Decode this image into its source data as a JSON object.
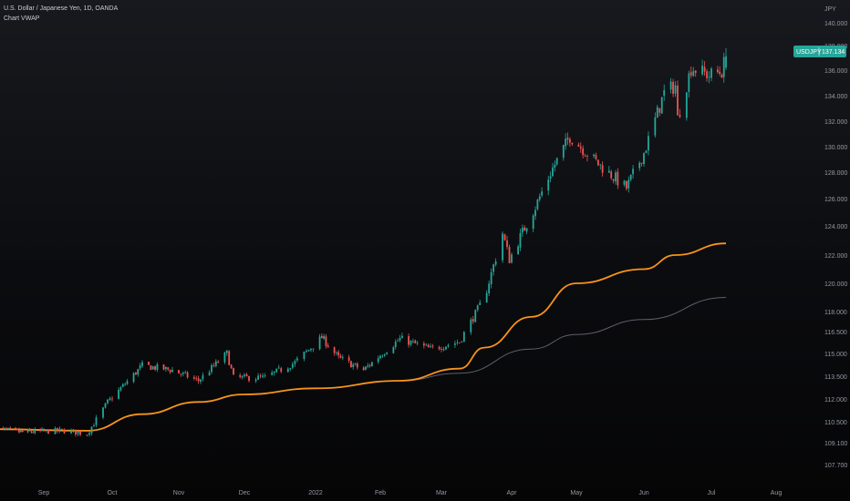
{
  "header": {
    "symbol_line": "U.S. Dollar / Japanese Yen, 1D, OANDA",
    "indicator_line": "Chart VWAP"
  },
  "colors": {
    "up": "#26a69a",
    "down": "#ef5350",
    "vwap": "#f7931a",
    "secondary_line": "#5d606b",
    "badge": "#26a69a",
    "background": "#0b0c0f"
  },
  "chart_data": {
    "type": "candlestick",
    "symbol": "USDJPY",
    "currency_label": "JPY",
    "last_price": "137.134",
    "x_ticks": [
      "Sep",
      "Oct",
      "Nov",
      "Dec",
      "2022",
      "Feb",
      "Mar",
      "Apr",
      "May",
      "Jun",
      "Jul",
      "Aug"
    ],
    "y_ticks": [
      "140.000",
      "138.000",
      "136.000",
      "134.000",
      "132.000",
      "130.000",
      "128.000",
      "126.000",
      "124.000",
      "122.000",
      "120.000",
      "118.000",
      "116.500",
      "115.000",
      "113.500",
      "112.000",
      "110.500",
      "109.100",
      "107.700"
    ],
    "y_tick_values": [
      140.0,
      138.0,
      136.0,
      134.0,
      132.0,
      130.0,
      128.0,
      126.0,
      124.0,
      122.0,
      120.0,
      118.0,
      116.5,
      115.0,
      113.5,
      112.0,
      110.5,
      109.1,
      107.7
    ],
    "close_path": [
      [
        "2021-08-05",
        110.0
      ],
      [
        "2021-08-20",
        109.8
      ],
      [
        "2021-09-10",
        109.9
      ],
      [
        "2021-09-20",
        109.7
      ],
      [
        "2021-09-29",
        111.8
      ],
      [
        "2021-10-15",
        114.2
      ],
      [
        "2021-10-29",
        113.9
      ],
      [
        "2021-11-10",
        113.2
      ],
      [
        "2021-11-23",
        115.0
      ],
      [
        "2021-11-26",
        113.4
      ],
      [
        "2021-12-10",
        113.4
      ],
      [
        "2021-12-23",
        114.4
      ],
      [
        "2022-01-04",
        116.1
      ],
      [
        "2022-01-12",
        114.7
      ],
      [
        "2022-01-24",
        113.9
      ],
      [
        "2022-02-10",
        116.0
      ],
      [
        "2022-02-24",
        115.3
      ],
      [
        "2022-03-09",
        115.8
      ],
      [
        "2022-03-20",
        119.0
      ],
      [
        "2022-03-28",
        123.5
      ],
      [
        "2022-03-31",
        121.7
      ],
      [
        "2022-04-12",
        125.4
      ],
      [
        "2022-04-20",
        128.3
      ],
      [
        "2022-04-28",
        130.8
      ],
      [
        "2022-05-12",
        128.5
      ],
      [
        "2022-05-24",
        126.8
      ],
      [
        "2022-06-01",
        129.5
      ],
      [
        "2022-06-10",
        134.2
      ],
      [
        "2022-06-15",
        134.8
      ],
      [
        "2022-06-16",
        132.2
      ],
      [
        "2022-06-22",
        136.2
      ],
      [
        "2022-06-30",
        135.6
      ],
      [
        "2022-07-06",
        135.9
      ],
      [
        "2022-07-08",
        137.134
      ]
    ],
    "vwap": [
      [
        "2021-08-05",
        110.0
      ],
      [
        "2021-09-20",
        109.9
      ],
      [
        "2021-10-15",
        111.0
      ],
      [
        "2021-11-10",
        111.8
      ],
      [
        "2021-12-01",
        112.3
      ],
      [
        "2022-01-01",
        112.7
      ],
      [
        "2022-02-10",
        113.2
      ],
      [
        "2022-03-09",
        114.0
      ],
      [
        "2022-03-20",
        115.4
      ],
      [
        "2022-04-10",
        117.6
      ],
      [
        "2022-05-01",
        120.0
      ],
      [
        "2022-06-01",
        121.0
      ],
      [
        "2022-06-15",
        122.0
      ],
      [
        "2022-07-08",
        122.8
      ]
    ],
    "secondary_line": [
      [
        "2022-02-10",
        113.2
      ],
      [
        "2022-03-09",
        113.7
      ],
      [
        "2022-04-10",
        115.3
      ],
      [
        "2022-05-01",
        116.3
      ],
      [
        "2022-06-01",
        117.4
      ],
      [
        "2022-07-08",
        119.0
      ]
    ]
  }
}
